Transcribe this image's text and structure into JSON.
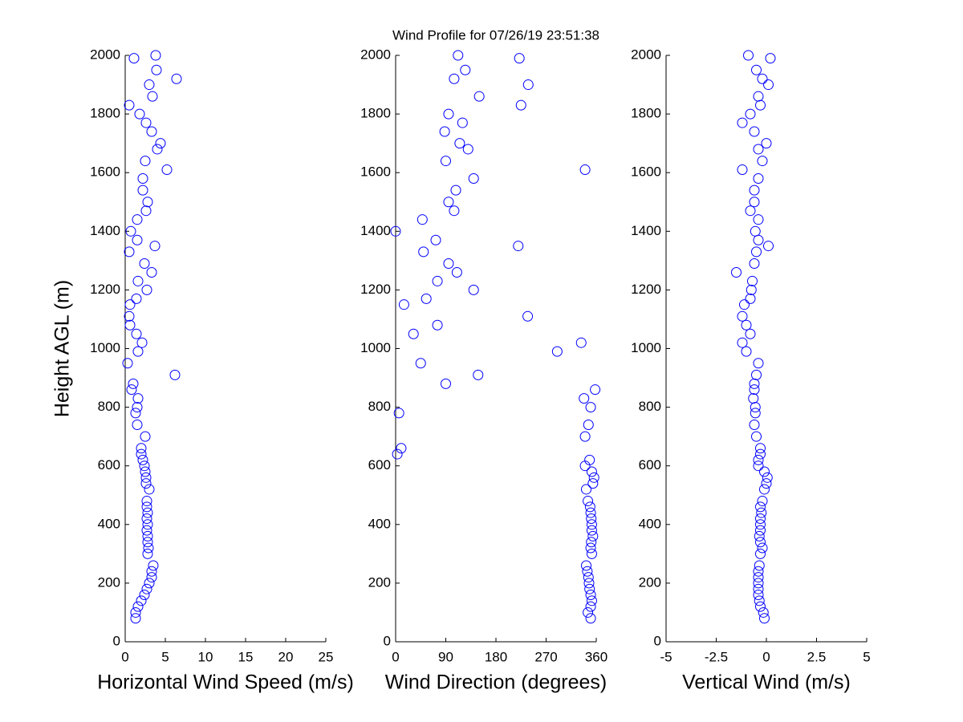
{
  "chart_data": [
    {
      "type": "scatter",
      "title": "Wind Profile for  07/26/19 23:51:38",
      "x_label": "Horizontal Wind Speed (m/s)",
      "y_label": "Height AGL (m)",
      "color": "#0000ff",
      "xlim": [
        0,
        25
      ],
      "xticks": [
        0,
        5,
        10,
        15,
        20,
        25
      ],
      "ylim": [
        0,
        2000
      ],
      "yticks": [
        0,
        200,
        400,
        600,
        800,
        1000,
        1200,
        1400,
        1600,
        1800,
        2000
      ],
      "x": [
        1.3,
        1.3,
        1.6,
        2,
        2.4,
        2.7,
        3,
        3.3,
        3.3,
        3.5,
        2.8,
        2.9,
        2.8,
        2.8,
        2.7,
        2.8,
        2.7,
        2.8,
        2.7,
        2.7,
        3,
        2.6,
        2.6,
        2.5,
        2.4,
        2.2,
        2,
        2,
        2.5,
        1.5,
        1.3,
        1.5,
        1.6,
        0.8,
        1,
        6.2,
        0.3,
        1.6,
        2.1,
        1.4,
        0.6,
        0.5,
        0.6,
        1.4,
        2.7,
        1.6,
        3.3,
        2.4,
        0.5,
        3.7,
        1.5,
        0.7,
        1.5,
        2.6,
        2.8,
        2.2,
        2.2,
        5.2,
        2.5,
        4,
        4.4,
        3.3,
        2.6,
        1.8,
        0.5,
        3.4,
        3,
        6.4,
        3.9,
        1.1,
        3.8
      ],
      "values": [
        80,
        100,
        120,
        140,
        160,
        180,
        200,
        220,
        240,
        260,
        300,
        320,
        340,
        360,
        380,
        400,
        420,
        440,
        460,
        480,
        520,
        540,
        560,
        580,
        600,
        620,
        640,
        660,
        700,
        740,
        780,
        800,
        830,
        860,
        880,
        910,
        950,
        990,
        1020,
        1050,
        1080,
        1110,
        1150,
        1170,
        1200,
        1230,
        1260,
        1290,
        1330,
        1350,
        1370,
        1400,
        1440,
        1470,
        1500,
        1540,
        1580,
        1610,
        1640,
        1680,
        1700,
        1740,
        1770,
        1800,
        1830,
        1860,
        1900,
        1920,
        1950,
        1990,
        2000
      ]
    },
    {
      "type": "scatter",
      "x_label": "Wind Direction (degrees)",
      "color": "#0000ff",
      "xlim": [
        0,
        360
      ],
      "xticks": [
        0,
        90,
        180,
        270,
        360
      ],
      "ylim": [
        0,
        2000
      ],
      "yticks": [
        0,
        200,
        400,
        600,
        800,
        1000,
        1200,
        1400,
        1600,
        1800,
        2000
      ],
      "x": [
        350,
        345,
        350,
        352,
        350,
        348,
        347,
        346,
        344,
        342,
        352,
        350,
        351,
        354,
        352,
        352,
        351,
        350,
        349,
        345,
        342,
        354,
        356,
        352,
        340,
        348,
        3,
        10,
        340,
        346,
        6,
        350,
        338,
        358,
        90,
        148,
        45,
        290,
        333,
        32,
        75,
        237,
        15,
        55,
        140,
        75,
        110,
        95,
        50,
        220,
        72,
        0,
        48,
        105,
        95,
        108,
        140,
        340,
        90,
        130,
        115,
        88,
        120,
        95,
        225,
        150,
        238,
        105,
        125,
        222,
        112
      ],
      "values": [
        80,
        100,
        120,
        140,
        160,
        180,
        200,
        220,
        240,
        260,
        300,
        320,
        340,
        360,
        380,
        400,
        420,
        440,
        460,
        480,
        520,
        540,
        560,
        580,
        600,
        620,
        640,
        660,
        700,
        740,
        780,
        800,
        830,
        860,
        880,
        910,
        950,
        990,
        1020,
        1050,
        1080,
        1110,
        1150,
        1170,
        1200,
        1230,
        1260,
        1290,
        1330,
        1350,
        1370,
        1400,
        1440,
        1470,
        1500,
        1540,
        1580,
        1610,
        1640,
        1680,
        1700,
        1740,
        1770,
        1800,
        1830,
        1860,
        1900,
        1920,
        1950,
        1990,
        2000
      ]
    },
    {
      "type": "scatter",
      "x_label": "Vertical Wind (m/s)",
      "color": "#0000ff",
      "xlim": [
        -5,
        5
      ],
      "xticks": [
        -5,
        -2.5,
        0,
        2.5,
        5
      ],
      "ylim": [
        0,
        2000
      ],
      "yticks": [
        0,
        200,
        400,
        600,
        800,
        1000,
        1200,
        1400,
        1600,
        1800,
        2000
      ],
      "x": [
        -0.1,
        -0.15,
        -0.3,
        -0.35,
        -0.4,
        -0.4,
        -0.4,
        -0.4,
        -0.4,
        -0.35,
        -0.3,
        -0.2,
        -0.3,
        -0.35,
        -0.3,
        -0.3,
        -0.3,
        -0.25,
        -0.3,
        -0.2,
        -0.1,
        0,
        0.05,
        -0.1,
        -0.4,
        -0.4,
        -0.3,
        -0.3,
        -0.5,
        -0.6,
        -0.55,
        -0.55,
        -0.65,
        -0.6,
        -0.6,
        -0.5,
        -0.4,
        -1,
        -1.2,
        -0.8,
        -1,
        -1.2,
        -1.1,
        -0.8,
        -0.75,
        -0.7,
        -1.5,
        -0.6,
        -0.5,
        0.1,
        -0.4,
        -0.55,
        -0.4,
        -0.8,
        -0.6,
        -0.6,
        -0.4,
        -1.2,
        -0.2,
        -0.4,
        0,
        -0.6,
        -1.2,
        -0.8,
        -0.3,
        -0.4,
        0.1,
        -0.2,
        -0.5,
        0.2,
        -0.9
      ],
      "values": [
        80,
        100,
        120,
        140,
        160,
        180,
        200,
        220,
        240,
        260,
        300,
        320,
        340,
        360,
        380,
        400,
        420,
        440,
        460,
        480,
        520,
        540,
        560,
        580,
        600,
        620,
        640,
        660,
        700,
        740,
        780,
        800,
        830,
        860,
        880,
        910,
        950,
        990,
        1020,
        1050,
        1080,
        1110,
        1150,
        1170,
        1200,
        1230,
        1260,
        1290,
        1330,
        1350,
        1370,
        1400,
        1440,
        1470,
        1500,
        1540,
        1580,
        1610,
        1640,
        1680,
        1700,
        1740,
        1770,
        1800,
        1830,
        1860,
        1900,
        1920,
        1950,
        1990,
        2000
      ]
    }
  ]
}
